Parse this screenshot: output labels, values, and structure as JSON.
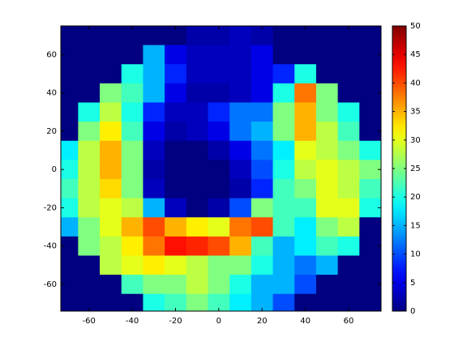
{
  "chart_data": {
    "type": "contour",
    "colormap": "jet",
    "x": [
      -70,
      -60,
      -50,
      -40,
      -30,
      -20,
      -10,
      0,
      10,
      20,
      30,
      40,
      50,
      60,
      70
    ],
    "y": [
      70,
      60,
      50,
      40,
      30,
      20,
      10,
      0,
      -10,
      -20,
      -30,
      -40,
      -50,
      -60,
      -70
    ],
    "z": [
      [
        0,
        0,
        0,
        0,
        0,
        0,
        2,
        2,
        3,
        2,
        0,
        0,
        0,
        0,
        0
      ],
      [
        0,
        0,
        0,
        0,
        15,
        5,
        3,
        3,
        3,
        5,
        0,
        0,
        0,
        0,
        0
      ],
      [
        0,
        0,
        0,
        20,
        15,
        8,
        3,
        3,
        3,
        5,
        8,
        20,
        0,
        0,
        0
      ],
      [
        0,
        0,
        25,
        22,
        15,
        5,
        2,
        2,
        3,
        5,
        20,
        38,
        25,
        0,
        0
      ],
      [
        0,
        20,
        28,
        20,
        8,
        3,
        3,
        8,
        12,
        12,
        25,
        35,
        25,
        20,
        0
      ],
      [
        0,
        25,
        32,
        22,
        5,
        2,
        3,
        5,
        12,
        15,
        25,
        35,
        28,
        22,
        0
      ],
      [
        18,
        28,
        35,
        25,
        3,
        0,
        0,
        2,
        5,
        12,
        18,
        30,
        28,
        25,
        20
      ],
      [
        20,
        28,
        35,
        25,
        2,
        0,
        0,
        0,
        3,
        10,
        20,
        28,
        30,
        28,
        25
      ],
      [
        22,
        28,
        33,
        25,
        3,
        0,
        0,
        0,
        2,
        8,
        22,
        25,
        30,
        28,
        22
      ],
      [
        20,
        28,
        30,
        28,
        15,
        3,
        0,
        2,
        10,
        25,
        22,
        22,
        30,
        30,
        20
      ],
      [
        15,
        25,
        30,
        35,
        40,
        35,
        32,
        30,
        38,
        40,
        22,
        18,
        25,
        28,
        0
      ],
      [
        0,
        25,
        28,
        32,
        38,
        43,
        42,
        40,
        35,
        22,
        15,
        18,
        22,
        20,
        0
      ],
      [
        0,
        0,
        28,
        30,
        32,
        30,
        28,
        25,
        25,
        20,
        15,
        12,
        15,
        0,
        0
      ],
      [
        0,
        0,
        0,
        22,
        25,
        25,
        28,
        25,
        20,
        15,
        15,
        10,
        0,
        0,
        0
      ],
      [
        0,
        0,
        0,
        0,
        20,
        22,
        25,
        22,
        18,
        15,
        10,
        0,
        0,
        0,
        0
      ]
    ],
    "xlim": [
      -73,
      75
    ],
    "ylim": [
      -74,
      75
    ],
    "xticks": [
      -60,
      -40,
      -20,
      0,
      20,
      40,
      60
    ],
    "yticks": [
      -60,
      -40,
      -20,
      0,
      20,
      40,
      60
    ],
    "clim": [
      0,
      50
    ],
    "cticks": [
      0,
      5,
      10,
      15,
      20,
      25,
      30,
      35,
      40,
      45,
      50
    ]
  }
}
